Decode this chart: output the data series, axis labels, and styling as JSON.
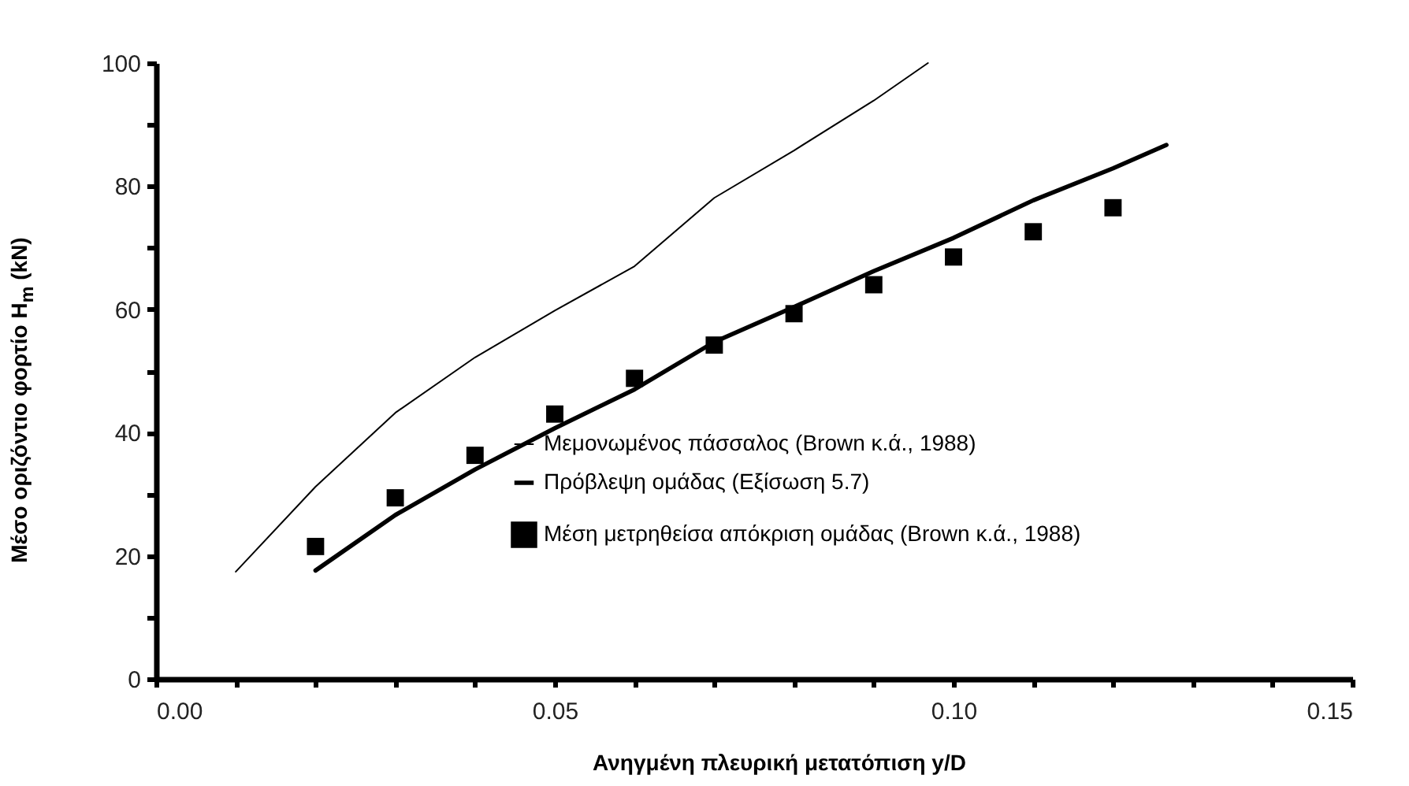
{
  "chart_data": {
    "type": "line",
    "xlabel": "Ανηγμένη πλευρική μετατόπιση y/D",
    "ylabel": "Μέσο οριζόντιο φορτίο H$_{m}$ (kN)",
    "xlim": [
      0,
      0.15
    ],
    "xticks": [
      {
        "value": 0,
        "label": "0.00"
      },
      {
        "value": 0.01,
        "label": null
      },
      {
        "value": 0.02,
        "label": null
      },
      {
        "value": 0.03,
        "label": null
      },
      {
        "value": 0.04,
        "label": null
      },
      {
        "value": 0.05,
        "label": "0.05"
      },
      {
        "value": 0.06,
        "label": null
      },
      {
        "value": 0.07,
        "label": null
      },
      {
        "value": 0.08,
        "label": null
      },
      {
        "value": 0.09,
        "label": null
      },
      {
        "value": 0.1,
        "label": "0.10"
      },
      {
        "value": 0.11,
        "label": null
      },
      {
        "value": 0.12,
        "label": null
      },
      {
        "value": 0.13,
        "label": null
      },
      {
        "value": 0.14,
        "label": null
      },
      {
        "value": 0.15,
        "label": "0.15"
      }
    ],
    "ylim": [
      0,
      100
    ],
    "yticks": [
      0,
      {
        "value": 10,
        "label": null
      },
      20,
      {
        "value": 30,
        "label": null
      },
      40,
      {
        "value": 50,
        "label": null
      },
      60,
      {
        "value": 70,
        "label": null
      },
      80,
      {
        "value": 90,
        "label": null
      },
      100
    ],
    "grid": false,
    "legend": "bottom right",
    "series": [
      {
        "name": "Μεμονωμένος πάσσαλος (Brown κ.ά., 1988)",
        "color": "#000000",
        "x": [
          0.01,
          0.02,
          0.03,
          0.04,
          0.05,
          0.06,
          0.07,
          0.08,
          0.09,
          0.0968
        ],
        "values": [
          17.4,
          31.2,
          43.2,
          52.2,
          59.8,
          67.0,
          78.1,
          85.8,
          93.9,
          100
        ]
      },
      {
        "name": "Πρόβλεψη ομάδας (Εξίσωση 5.7)",
        "color": "#000000",
        "x": [
          0.02,
          0.03,
          0.04,
          0.05,
          0.06,
          0.07,
          0.08,
          0.09,
          0.1,
          0.11,
          0.12,
          0.1267
        ],
        "values": [
          17.6,
          26.6,
          34,
          40.7,
          47,
          54.7,
          60.4,
          66.2,
          71.6,
          77.7,
          82.9,
          86.7
        ]
      },
      {
        "name": "Μέση μετρηθείσα απόκριση ομάδας (Brown κ.ά., 1988)",
        "type": "scatter",
        "marker": "square",
        "color": "#000000",
        "x": [
          0.02,
          0.03,
          0.04,
          0.05,
          0.06,
          0.07,
          0.08,
          0.09,
          0.1,
          0.11,
          0.12
        ],
        "values": [
          21.5,
          29.4,
          36.3,
          43,
          48.8,
          54.2,
          59.3,
          64,
          68.5,
          72.6,
          76.5
        ]
      }
    ]
  }
}
